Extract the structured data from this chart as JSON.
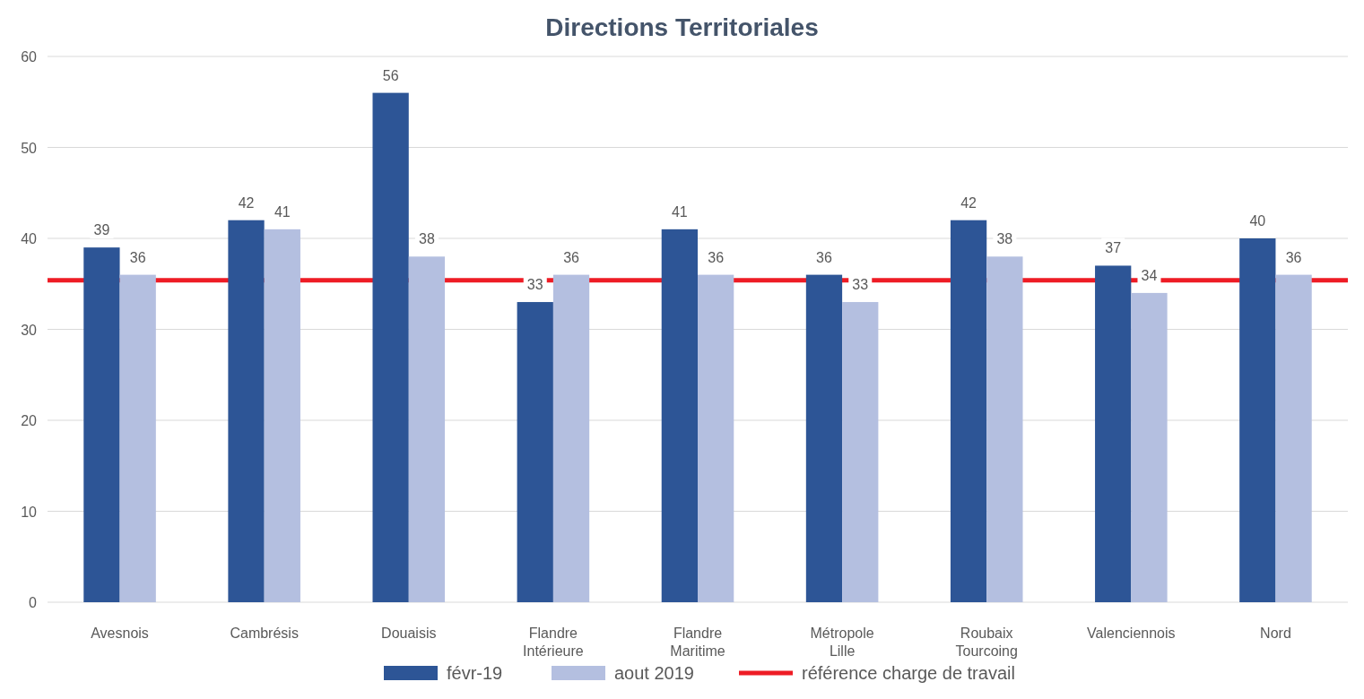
{
  "chart_data": {
    "type": "bar",
    "title": "Directions Territoriales",
    "categories": [
      "Avesnois",
      "Cambrésis",
      "Douaisis",
      "Flandre Intérieure",
      "Flandre Maritime",
      "Métropole Lille",
      "Roubaix Tourcoing",
      "Valenciennois",
      "Nord"
    ],
    "series": [
      {
        "name": "févr-19",
        "color": "#2d5596",
        "values": [
          39,
          42,
          56,
          33,
          41,
          36,
          42,
          37,
          40
        ]
      },
      {
        "name": "aout 2019",
        "color": "#b4bfe0",
        "values": [
          36,
          41,
          38,
          36,
          36,
          33,
          38,
          34,
          36
        ]
      }
    ],
    "ref_lines": [
      {
        "axis": "y",
        "value": 35.4,
        "label": "référence charge de travail",
        "color": "#ee1c25"
      }
    ],
    "ylim": [
      0,
      60
    ],
    "yticks": [
      0,
      10,
      20,
      30,
      40,
      50,
      60
    ],
    "grid": "y",
    "data_labels": true,
    "legend": "bottom"
  }
}
